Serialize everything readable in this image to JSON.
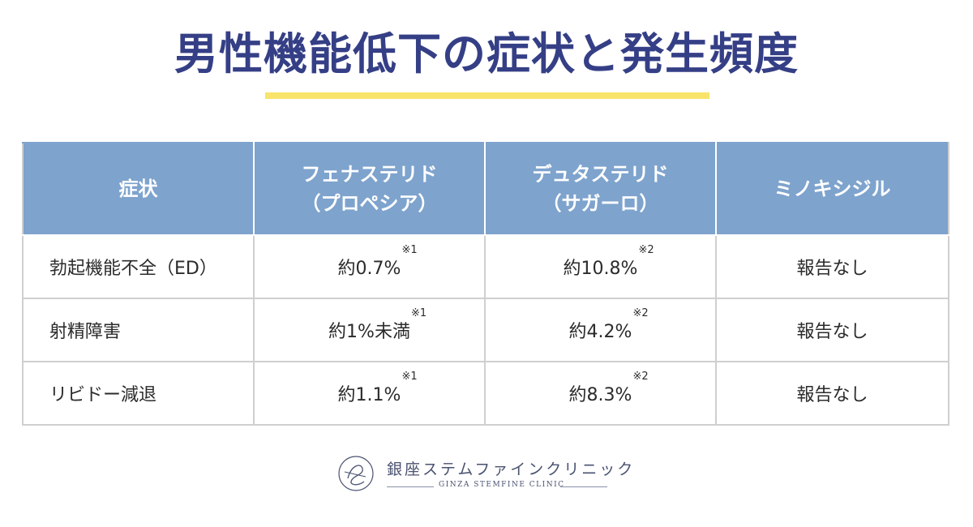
{
  "title": "男性機能低下の症状と発生頻度",
  "colors": {
    "title": "#353f86",
    "accent_underline": "#f8e46a",
    "header_bg": "#7ea3cd"
  },
  "table": {
    "headers": [
      {
        "line1": "症状",
        "line2": ""
      },
      {
        "line1": "フェナステリド",
        "line2": "（プロペシア）"
      },
      {
        "line1": "デュタステリド",
        "line2": "（サガーロ）"
      },
      {
        "line1": "ミノキシジル",
        "line2": ""
      }
    ],
    "rows": [
      {
        "symptom": "勃起機能不全（ED）",
        "finasteride": "約0.7%",
        "finasteride_note": "※1",
        "dutasteride": "約10.8%",
        "dutasteride_note": "※2",
        "minoxidil": "報告なし"
      },
      {
        "symptom": "射精障害",
        "finasteride": "約1%未満",
        "finasteride_note": "※1",
        "dutasteride": "約4.2%",
        "dutasteride_note": "※2",
        "minoxidil": "報告なし"
      },
      {
        "symptom": "リビドー減退",
        "finasteride": "約1.1%",
        "finasteride_note": "※1",
        "dutasteride": "約8.3%",
        "dutasteride_note": "※2",
        "minoxidil": "報告なし"
      }
    ]
  },
  "logo": {
    "name": "銀座ステムファインクリニック",
    "sub": "GINZA STEMFINE CLINIC",
    "icon": "clinic-logo-icon"
  }
}
